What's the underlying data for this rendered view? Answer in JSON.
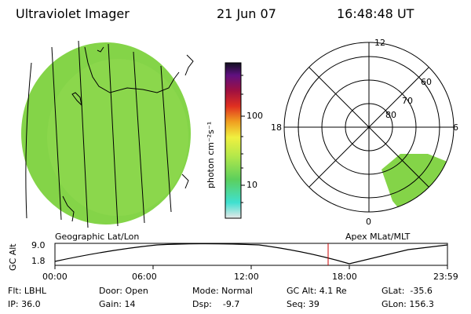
{
  "header": {
    "instrument": "Ultraviolet Imager",
    "date": "21 Jun 07",
    "time": "16:48:48 UT"
  },
  "colorbar": {
    "label": "photon cm⁻²s⁻¹",
    "ticks": [
      "100",
      "10"
    ],
    "scale": "log"
  },
  "polar": {
    "mlt_labels": [
      "12",
      "18",
      "6",
      "0"
    ],
    "lat_labels": [
      "60",
      "70",
      "80"
    ]
  },
  "timeline": {
    "left_caption": "Geographic Lat/Lon",
    "right_caption": "Apex MLat/MLT",
    "yaxis_label": "GC Alt",
    "y_ticks": [
      "9.0",
      "1.8"
    ],
    "x_ticks": [
      "00:00",
      "06:00",
      "12:00",
      "18:00",
      "23:59"
    ],
    "current_time_marker": "16:48:48"
  },
  "footer": {
    "flt": "Flt: LBHL",
    "ip": "IP: 36.0",
    "door": "Door: Open",
    "gain": "Gain: 14",
    "mode": "Mode: Normal",
    "dsp": "Dsp:    -9.7",
    "gcalt": "GC Alt: 4.1 Re",
    "seq": "Seq: 39",
    "glat": "GLat:  -35.6",
    "glon": "GLon: 156.3"
  }
}
